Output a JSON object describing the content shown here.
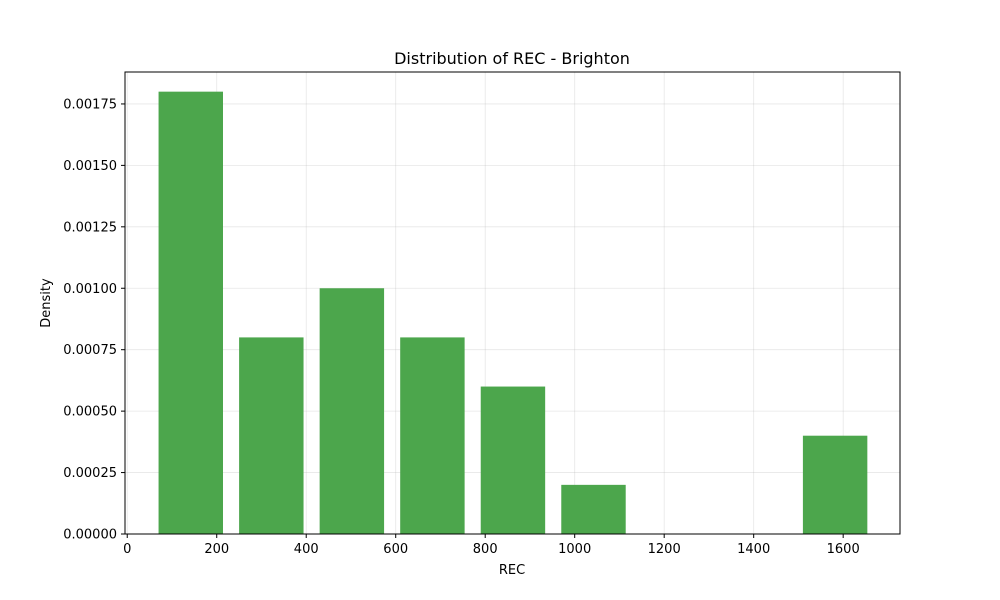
{
  "chart_data": {
    "type": "bar",
    "title": "Distribution of REC - Brighton",
    "xlabel": "REC",
    "ylabel": "Density",
    "xlim": [
      -5,
      1727
    ],
    "ylim": [
      0,
      0.00188
    ],
    "grid": true,
    "bar_color": "#4ca64c",
    "x_ticks": [
      0,
      200,
      400,
      600,
      800,
      1000,
      1200,
      1400,
      1600
    ],
    "x_tick_labels": [
      "0",
      "200",
      "400",
      "600",
      "800",
      "1000",
      "1200",
      "1400",
      "1600"
    ],
    "y_ticks": [
      0,
      0.00025,
      0.0005,
      0.00075,
      0.001,
      0.00125,
      0.0015,
      0.00175
    ],
    "y_tick_labels": [
      "0.00000",
      "0.00025",
      "0.00050",
      "0.00075",
      "0.00100",
      "0.00125",
      "0.00150",
      "0.00175"
    ],
    "bins": [
      {
        "start": 70,
        "end": 214,
        "density": 0.0018
      },
      {
        "start": 250,
        "end": 394,
        "density": 0.0008
      },
      {
        "start": 430,
        "end": 574,
        "density": 0.001
      },
      {
        "start": 610,
        "end": 754,
        "density": 0.0008
      },
      {
        "start": 790,
        "end": 934,
        "density": 0.0006
      },
      {
        "start": 970,
        "end": 1114,
        "density": 0.0002
      },
      {
        "start": 1510,
        "end": 1654,
        "density": 0.0004
      }
    ]
  }
}
